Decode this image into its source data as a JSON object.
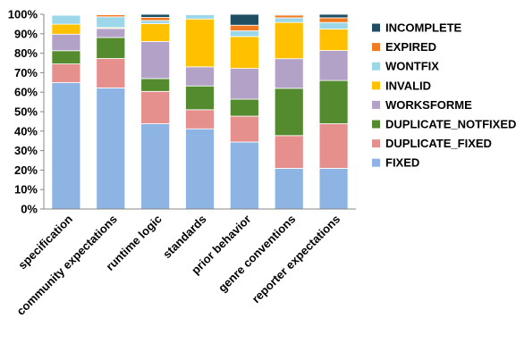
{
  "chart_data": {
    "type": "bar",
    "stacked": true,
    "percent": true,
    "categories": [
      "specification",
      "community expectations",
      "runtime logic",
      "standards",
      "prior behavior",
      "genre conventions",
      "reporter expectations"
    ],
    "y_ticks": [
      "0%",
      "10%",
      "20%",
      "30%",
      "40%",
      "50%",
      "60%",
      "70%",
      "80%",
      "90%",
      "100%"
    ],
    "ylim": [
      0,
      100
    ],
    "grid": false,
    "legend_position": "right",
    "series": [
      {
        "name": "FIXED",
        "color": "#8DB4E2",
        "values": [
          64.9,
          62.2,
          43.8,
          41.2,
          34.4,
          20.9,
          20.9
        ]
      },
      {
        "name": "DUPLICATE_FIXED",
        "color": "#E6908E",
        "values": [
          9.6,
          15.1,
          16.6,
          9.8,
          13.3,
          16.8,
          22.9
        ]
      },
      {
        "name": "DUPLICATE_NOTFIXED",
        "color": "#558B2F",
        "values": [
          6.8,
          10.8,
          6.6,
          12.2,
          8.7,
          24.3,
          22.2
        ]
      },
      {
        "name": "WORKSFORME",
        "color": "#B3A2C7",
        "values": [
          8.5,
          4.6,
          19.0,
          9.8,
          15.8,
          15.2,
          15.4
        ]
      },
      {
        "name": "INVALID",
        "color": "#FFC000",
        "values": [
          5.1,
          0.5,
          9.2,
          24.6,
          16.4,
          18.6,
          11.0
        ]
      },
      {
        "name": "WONTFIX",
        "color": "#9BD7E8",
        "values": [
          4.6,
          5.5,
          1.6,
          2.2,
          2.9,
          2.4,
          3.4
        ]
      },
      {
        "name": "EXPIRED",
        "color": "#F07B22",
        "values": [
          0.3,
          1.1,
          1.6,
          0.1,
          2.9,
          1.4,
          2.4
        ]
      },
      {
        "name": "INCOMPLETE",
        "color": "#1F4E62",
        "values": [
          0.2,
          0.2,
          1.6,
          0.1,
          5.6,
          0.4,
          1.8
        ]
      }
    ]
  }
}
